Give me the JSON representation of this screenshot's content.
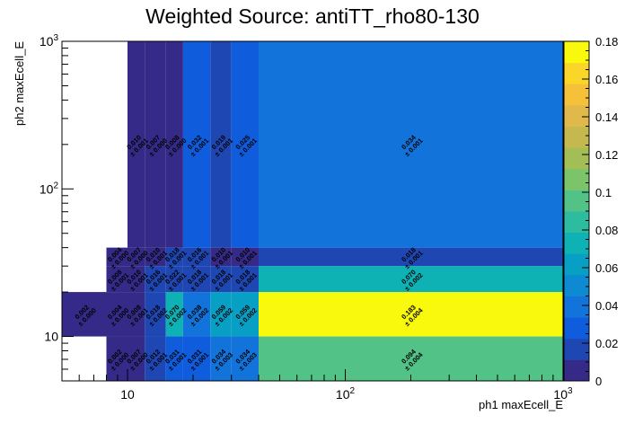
{
  "chart_data": {
    "type": "heatmap",
    "title": "Weighted Source: antiTT_rho80-130",
    "xlabel": "ph1 maxEcell_E",
    "ylabel": "ph2 maxEcell_E",
    "x_scale": "log",
    "y_scale": "log",
    "xlim": [
      5,
      1000
    ],
    "ylim": [
      5,
      1000
    ],
    "x_bin_edges": [
      5,
      8,
      10,
      12,
      15,
      18,
      24,
      30,
      40,
      1000
    ],
    "y_bin_edges": [
      5,
      10,
      20,
      30,
      40,
      1000
    ],
    "x_major_ticks": [
      {
        "value": 10,
        "base": "10",
        "exp": ""
      },
      {
        "value": 100,
        "base": "10",
        "exp": "2"
      },
      {
        "value": 1000,
        "base": "10",
        "exp": "3"
      }
    ],
    "y_major_ticks": [
      {
        "value": 10,
        "base": "10",
        "exp": ""
      },
      {
        "value": 100,
        "base": "10",
        "exp": "2"
      },
      {
        "value": 1000,
        "base": "10",
        "exp": "3"
      }
    ],
    "colorbar": {
      "min": 0,
      "max": 0.18,
      "ticks": [
        "0",
        "0.02",
        "0.04",
        "0.06",
        "0.08",
        "0.1",
        "0.12",
        "0.14",
        "0.16",
        "0.18"
      ],
      "palette": [
        "#352a87",
        "#1f47b3",
        "#0f5cdd",
        "#1274db",
        "#0d8ad2",
        "#089fc5",
        "#0eb1b4",
        "#2dbc9f",
        "#52c286",
        "#7bc46a",
        "#a2be55",
        "#c4b84e",
        "#e1b84a",
        "#f5c13a",
        "#f9d628",
        "#f9f90e"
      ]
    },
    "cells": [
      {
        "x": 1,
        "y": 0,
        "value": 0.002,
        "label": "0.002",
        "err": "± 0.000"
      },
      {
        "x": 2,
        "y": 0,
        "value": 0.007,
        "label": "0.007",
        "err": "± 0.000"
      },
      {
        "x": 3,
        "y": 0,
        "value": 0.012,
        "label": "0.012",
        "err": "± 0.001"
      },
      {
        "x": 4,
        "y": 0,
        "value": 0.031,
        "label": "0.031",
        "err": "± 0.001"
      },
      {
        "x": 5,
        "y": 0,
        "value": 0.031,
        "label": "0.031",
        "err": "± 0.001"
      },
      {
        "x": 6,
        "y": 0,
        "value": 0.034,
        "label": "0.034",
        "err": "± 0.003"
      },
      {
        "x": 7,
        "y": 0,
        "value": 0.034,
        "label": "0.034",
        "err": "± 0.003"
      },
      {
        "x": 8,
        "y": 0,
        "value": 0.094,
        "label": "0.094",
        "err": "± 0.004"
      },
      {
        "x": 0,
        "y": 1,
        "value": 0.002,
        "label": "0.002",
        "err": "± 0.000"
      },
      {
        "x": 1,
        "y": 1,
        "value": 0.004,
        "label": "0.004",
        "err": "± 0.000"
      },
      {
        "x": 2,
        "y": 1,
        "value": 0.008,
        "label": "0.008",
        "err": "± 0.001"
      },
      {
        "x": 3,
        "y": 1,
        "value": 0.018,
        "label": "0.018",
        "err": "± 0.002"
      },
      {
        "x": 4,
        "y": 1,
        "value": 0.07,
        "label": "0.070",
        "err": "± 0.002"
      },
      {
        "x": 5,
        "y": 1,
        "value": 0.038,
        "label": "0.038",
        "err": "± 0.002"
      },
      {
        "x": 6,
        "y": 1,
        "value": 0.059,
        "label": "0.059",
        "err": "± 0.002"
      },
      {
        "x": 7,
        "y": 1,
        "value": 0.059,
        "label": "0.059",
        "err": "± 0.002"
      },
      {
        "x": 8,
        "y": 1,
        "value": 0.183,
        "label": "0.183",
        "err": "± 0.004"
      },
      {
        "x": 1,
        "y": 2,
        "value": 0.008,
        "label": "0.008",
        "err": "± 0.001"
      },
      {
        "x": 2,
        "y": 2,
        "value": 0.01,
        "label": "0.010",
        "err": "± 0.001"
      },
      {
        "x": 3,
        "y": 2,
        "value": 0.016,
        "label": "0.016",
        "err": "± 0.001"
      },
      {
        "x": 4,
        "y": 2,
        "value": 0.022,
        "label": "0.022",
        "err": "± 0.001"
      },
      {
        "x": 5,
        "y": 2,
        "value": 0.018,
        "label": "0.018",
        "err": "± 0.001"
      },
      {
        "x": 6,
        "y": 2,
        "value": 0.018,
        "label": "0.018",
        "err": "± 0.001"
      },
      {
        "x": 7,
        "y": 2,
        "value": 0.018,
        "label": "0.018",
        "err": "± 0.001"
      },
      {
        "x": 8,
        "y": 2,
        "value": 0.07,
        "label": "0.070",
        "err": "± 0.002"
      },
      {
        "x": 1,
        "y": 3,
        "value": 0.004,
        "label": "0.004",
        "err": "± 0.000"
      },
      {
        "x": 2,
        "y": 3,
        "value": 0.007,
        "label": "0.007",
        "err": "± 0.000"
      },
      {
        "x": 3,
        "y": 3,
        "value": 0.01,
        "label": "0.010",
        "err": "± 0.001"
      },
      {
        "x": 4,
        "y": 3,
        "value": 0.018,
        "label": "0.018",
        "err": "± 0.001"
      },
      {
        "x": 5,
        "y": 3,
        "value": 0.016,
        "label": "0.016",
        "err": "± 0.001"
      },
      {
        "x": 6,
        "y": 3,
        "value": 0.01,
        "label": "0.010",
        "err": "± 0.001"
      },
      {
        "x": 7,
        "y": 3,
        "value": 0.01,
        "label": "0.010",
        "err": "± 0.001"
      },
      {
        "x": 8,
        "y": 3,
        "value": 0.018,
        "label": "0.018",
        "err": "± 0.001"
      },
      {
        "x": 2,
        "y": 4,
        "value": 0.01,
        "label": "0.010",
        "err": "± 0.001"
      },
      {
        "x": 3,
        "y": 4,
        "value": 0.007,
        "label": "0.007",
        "err": "± 0.000"
      },
      {
        "x": 4,
        "y": 4,
        "value": 0.008,
        "label": "0.008",
        "err": "± 0.000"
      },
      {
        "x": 5,
        "y": 4,
        "value": 0.032,
        "label": "0.032",
        "err": "± 0.001"
      },
      {
        "x": 6,
        "y": 4,
        "value": 0.019,
        "label": "0.019",
        "err": "± 0.001"
      },
      {
        "x": 7,
        "y": 4,
        "value": 0.025,
        "label": "0.025",
        "err": "± 0.001"
      },
      {
        "x": 8,
        "y": 4,
        "value": 0.034,
        "label": "0.034",
        "err": "± 0.001"
      }
    ],
    "grid": false,
    "legend": "colorbar-right"
  }
}
